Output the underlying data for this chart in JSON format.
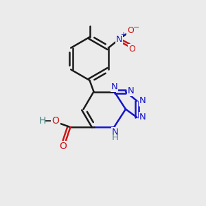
{
  "bg_color": "#ebebeb",
  "bond_color": "#1a1a1a",
  "N_color": "#1414cc",
  "O_color": "#cc1414",
  "H_color": "#3a8080",
  "lw": 1.8,
  "dbo": 0.13,
  "figsize": [
    3.0,
    3.0
  ],
  "dpi": 100,
  "xlim": [
    0,
    10
  ],
  "ylim": [
    0,
    10
  ]
}
